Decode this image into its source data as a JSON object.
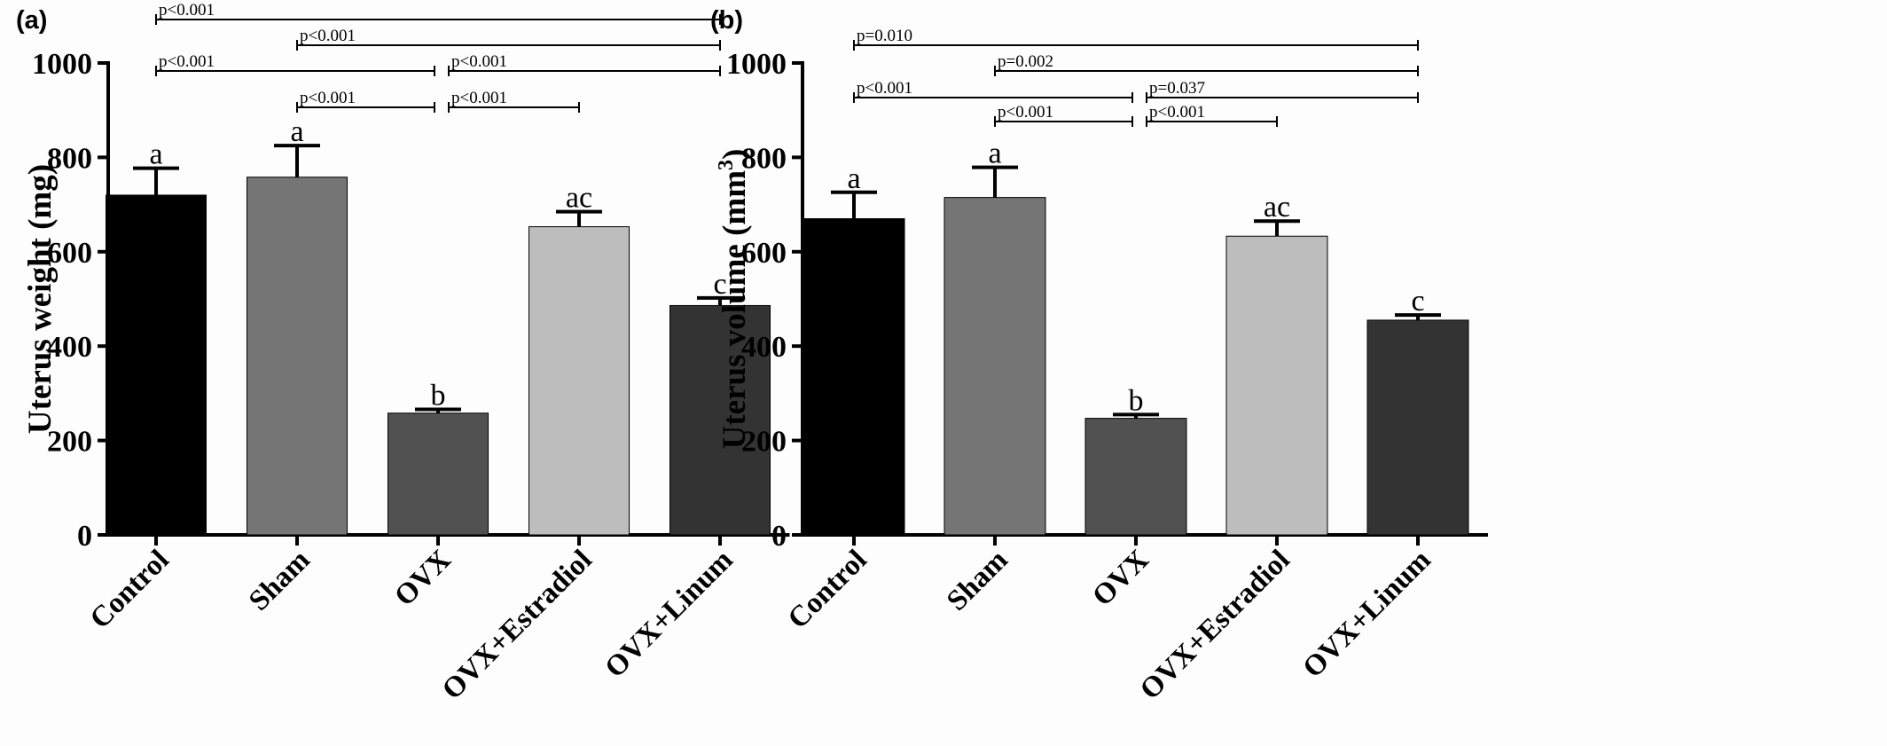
{
  "chart_data": [
    {
      "type": "bar",
      "panel_label": "(a)",
      "ylabel": "Uterus weight (mg)",
      "ylabel_sup": "",
      "ylim": [
        0,
        1000
      ],
      "yticks": [
        "0",
        "200",
        "400",
        "600",
        "800",
        "1000"
      ],
      "ytick_values": [
        0,
        200,
        400,
        600,
        800,
        1000
      ],
      "categories": [
        "Control",
        "Sham",
        "OVX",
        "OVX+Estradiol",
        "OVX+Linum"
      ],
      "values": [
        720,
        758,
        258,
        653,
        486
      ],
      "errors": [
        57,
        67,
        8,
        32,
        16
      ],
      "group_letters": [
        "a",
        "a",
        "b",
        "ac",
        "c"
      ],
      "colors": [
        "#000000",
        "#757575",
        "#515151",
        "#bdbdbd",
        "#333333"
      ],
      "comparisons": [
        {
          "from": 0,
          "to": 4,
          "label": "p<0.001"
        },
        {
          "from": 1,
          "to": 4,
          "label": "p<0.001"
        },
        {
          "from": 0,
          "to": 2,
          "label": "p<0.001"
        },
        {
          "from": 2,
          "to": 4,
          "label": "p<0.001"
        },
        {
          "from": 1,
          "to": 2,
          "label": "p<0.001"
        },
        {
          "from": 2,
          "to": 3,
          "label": "p<0.001"
        }
      ]
    },
    {
      "type": "bar",
      "panel_label": "(b)",
      "ylabel": "Uterus volume (mm",
      "ylabel_sup": "3",
      "ylabel_close": ")",
      "ylim": [
        0,
        1000
      ],
      "yticks": [
        "0",
        "200",
        "400",
        "600",
        "800",
        "1000"
      ],
      "ytick_values": [
        0,
        200,
        400,
        600,
        800,
        1000
      ],
      "categories": [
        "Control",
        "Sham",
        "OVX",
        "OVX+Estradiol",
        "OVX+Linum"
      ],
      "values": [
        670,
        715,
        247,
        633,
        455
      ],
      "errors": [
        56,
        64,
        8,
        32,
        11
      ],
      "group_letters": [
        "a",
        "a",
        "b",
        "ac",
        "c"
      ],
      "colors": [
        "#000000",
        "#757575",
        "#515151",
        "#bdbdbd",
        "#333333"
      ],
      "comparisons": [
        {
          "from": 0,
          "to": 4,
          "label": "p=0.010"
        },
        {
          "from": 1,
          "to": 4,
          "label": "p=0.002"
        },
        {
          "from": 0,
          "to": 2,
          "label": "p<0.001"
        },
        {
          "from": 2,
          "to": 4,
          "label": "p=0.037"
        },
        {
          "from": 1,
          "to": 2,
          "label": "p<0.001"
        },
        {
          "from": 2,
          "to": 3,
          "label": "p<0.001"
        }
      ]
    }
  ]
}
